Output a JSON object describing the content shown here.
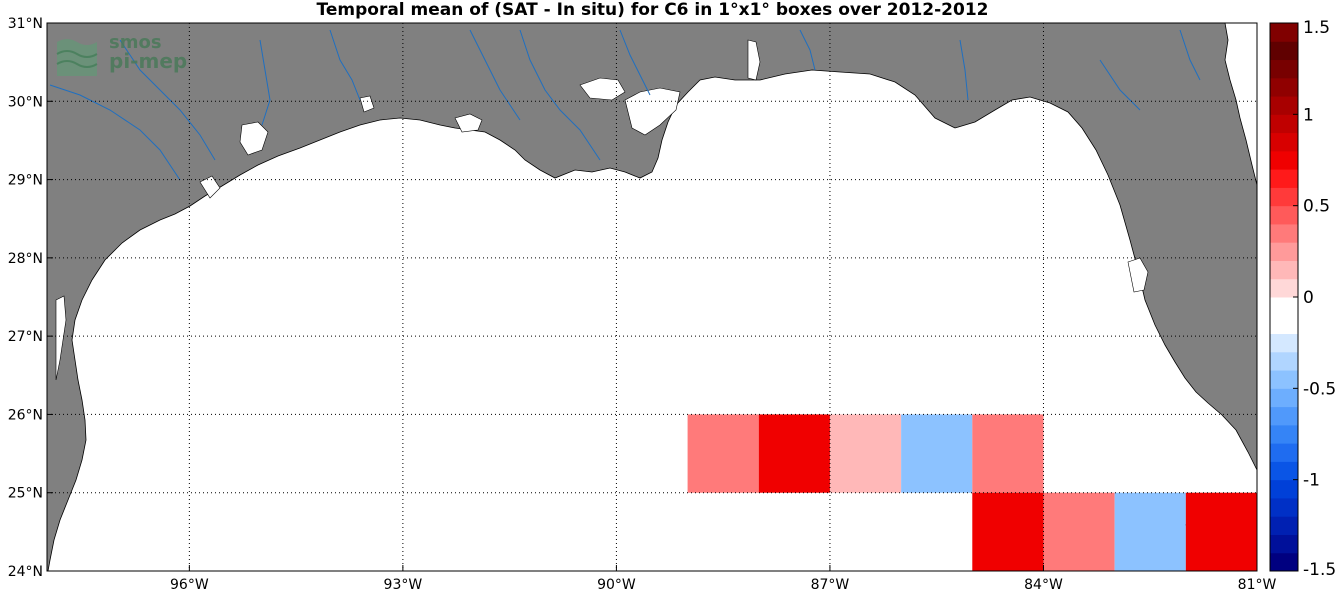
{
  "title": "Temporal mean of (SAT - In situ) for C6 in 1°x1° boxes over 2012-2012",
  "logo": {
    "line1": "smos",
    "line2": "pi-mep"
  },
  "map": {
    "lon_range": [
      -98,
      -81
    ],
    "lat_range": [
      24,
      31
    ],
    "land_color": "#808080",
    "water_color": "#ffffff",
    "river_color": "#1f6fc0",
    "grid": true,
    "lon_ticks": [
      {
        "lon": -96,
        "label": "96°W"
      },
      {
        "lon": -93,
        "label": "93°W"
      },
      {
        "lon": -90,
        "label": "90°W"
      },
      {
        "lon": -87,
        "label": "87°W"
      },
      {
        "lon": -84,
        "label": "84°W"
      },
      {
        "lon": -81,
        "label": "81°W"
      }
    ],
    "lat_ticks": [
      {
        "lat": 24,
        "label": "24°N"
      },
      {
        "lat": 25,
        "label": "25°N"
      },
      {
        "lat": 26,
        "label": "26°N"
      },
      {
        "lat": 27,
        "label": "27°N"
      },
      {
        "lat": 28,
        "label": "28°N"
      },
      {
        "lat": 29,
        "label": "29°N"
      },
      {
        "lat": 30,
        "label": "30°N"
      },
      {
        "lat": 31,
        "label": "31°N"
      }
    ],
    "boxes": [
      {
        "lon": -88.5,
        "lat": 25.5,
        "value": 0.35
      },
      {
        "lon": -87.5,
        "lat": 25.5,
        "value": 0.75
      },
      {
        "lon": -86.5,
        "lat": 25.5,
        "value": 0.15
      },
      {
        "lon": -85.5,
        "lat": 25.5,
        "value": -0.45
      },
      {
        "lon": -84.5,
        "lat": 25.5,
        "value": 0.35
      },
      {
        "lon": -84.5,
        "lat": 24.5,
        "value": 0.75
      },
      {
        "lon": -83.5,
        "lat": 24.5,
        "value": 0.35
      },
      {
        "lon": -82.5,
        "lat": 24.5,
        "value": -0.45
      },
      {
        "lon": -81.5,
        "lat": 24.5,
        "value": 0.75
      }
    ]
  },
  "colorbar": {
    "range": [
      -1.5,
      1.5
    ],
    "ticks": [
      {
        "value": 1.5,
        "label": "1.5"
      },
      {
        "value": 1,
        "label": "1"
      },
      {
        "value": 0.5,
        "label": "0.5"
      },
      {
        "value": 0,
        "label": "0"
      },
      {
        "value": -0.5,
        "label": "-0.5"
      },
      {
        "value": -1,
        "label": "-1"
      },
      {
        "value": -1.5,
        "label": "-1.5"
      }
    ],
    "colors": [
      "#000080",
      "#00109a",
      "#0020b2",
      "#0030c6",
      "#0040d8",
      "#0a55e6",
      "#1f6cf0",
      "#3584f6",
      "#5099fb",
      "#6daefe",
      "#8cc2ff",
      "#b0d5ff",
      "#d4e8ff",
      "#ffffff",
      "#ffffff",
      "#ffd8d8",
      "#ffb8b8",
      "#ff9a9a",
      "#ff7a7a",
      "#ff5a5a",
      "#ff3a3a",
      "#ff1a1a",
      "#f00000",
      "#d80000",
      "#c00000",
      "#a80000",
      "#900000",
      "#780000",
      "#600000",
      "#800000"
    ]
  }
}
